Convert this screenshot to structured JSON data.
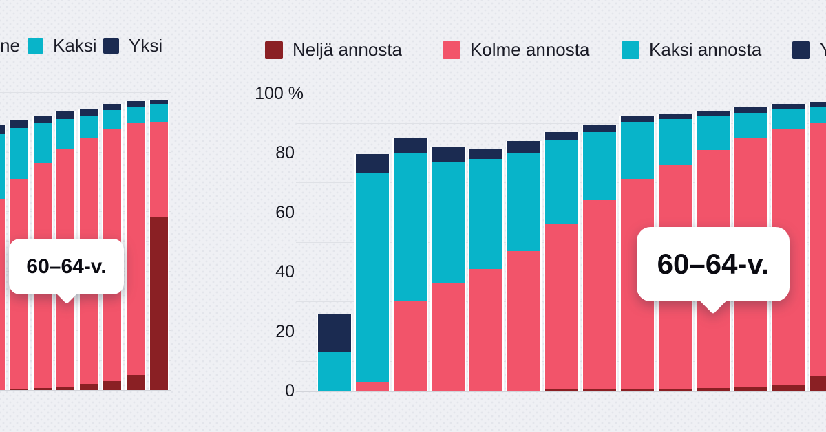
{
  "page": {
    "background": "#eff0f4",
    "description_colors": {
      "grid": "#dfe1e6",
      "axis_line": "#d2d4da",
      "text": "#15161f"
    }
  },
  "chart_data": [
    {
      "id": "left-chart",
      "type": "bar",
      "stacked": true,
      "stack_order": "bottom-to-top",
      "cropped_edge": "left",
      "tooltip": "60–64-v.",
      "ylim": [
        0,
        100
      ],
      "grid_step": 10,
      "legend": {
        "items": [
          {
            "label": "ne",
            "partial": true
          },
          {
            "label": "Kaksi",
            "color": "#08b4c9"
          },
          {
            "label": "Yksi",
            "color": "#1b2b51"
          }
        ]
      },
      "series": [
        {
          "name": "Neljä",
          "color": "#8a2024",
          "values": [
            0,
            0.5,
            0.7,
            1.2,
            2,
            3,
            5,
            58
          ]
        },
        {
          "name": "Kolme",
          "color": "#f2546a",
          "values": [
            64,
            70.5,
            75.5,
            79.8,
            82.5,
            84.5,
            84.5,
            32
          ]
        },
        {
          "name": "Kaksi",
          "color": "#08b4c9",
          "values": [
            22,
            17,
            13.5,
            10,
            7.5,
            6.5,
            5.5,
            6
          ]
        },
        {
          "name": "Yksi",
          "color": "#1b2b51",
          "values": [
            3,
            2.5,
            2.3,
            2.5,
            2.5,
            2,
            2,
            1.5
          ]
        }
      ]
    },
    {
      "id": "right-chart",
      "type": "bar",
      "stacked": true,
      "stack_order": "bottom-to-top",
      "cropped_edge": "right",
      "tooltip": "60–64-v.",
      "ylim": [
        0,
        100
      ],
      "grid_step": 10,
      "y_axis": {
        "ticks": [
          {
            "v": 0,
            "label": "0"
          },
          {
            "v": 20,
            "label": "20"
          },
          {
            "v": 40,
            "label": "40"
          },
          {
            "v": 60,
            "label": "60"
          },
          {
            "v": 80,
            "label": "80"
          },
          {
            "v": 100,
            "label": "100 %"
          }
        ]
      },
      "legend": {
        "items": [
          {
            "label": "Neljä annosta",
            "color": "#8a2024"
          },
          {
            "label": "Kolme annosta",
            "color": "#f2546a"
          },
          {
            "label": "Kaksi annosta",
            "color": "#08b4c9"
          },
          {
            "label": "Y",
            "color": "#1b2b51",
            "partial": true
          }
        ]
      },
      "series": [
        {
          "name": "Neljä annosta",
          "color": "#8a2024",
          "values": [
            0,
            0,
            0,
            0,
            0,
            0,
            0.5,
            0.5,
            0.7,
            0.8,
            1,
            1.5,
            2,
            5
          ]
        },
        {
          "name": "Kolme annosta",
          "color": "#f2546a",
          "values": [
            0,
            3,
            30,
            36,
            41,
            47,
            55.5,
            63.5,
            70.5,
            75,
            80,
            83.5,
            86,
            85
          ]
        },
        {
          "name": "Kaksi annosta",
          "color": "#08b4c9",
          "values": [
            13,
            70,
            50,
            41,
            37,
            33,
            28.5,
            23,
            19,
            15.5,
            11.5,
            8.5,
            6.5,
            5.5
          ]
        },
        {
          "name": "Yksi annosta",
          "color": "#1b2b51",
          "values": [
            13,
            6.5,
            5,
            5,
            3.5,
            4,
            2.5,
            2.5,
            2,
            1.7,
            1.5,
            2,
            2,
            1.5
          ]
        }
      ]
    }
  ]
}
